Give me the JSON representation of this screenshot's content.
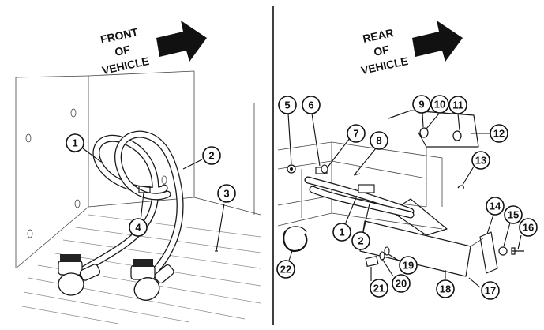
{
  "left_panel": {
    "direction_label": [
      "FRONT",
      "OF",
      "VEHICLE"
    ]
  },
  "right_panel": {
    "direction_label": [
      "REAR",
      "OF",
      "VEHICLE"
    ]
  },
  "callouts": [
    {
      "panel": "left",
      "number": "1",
      "part": "hose"
    },
    {
      "panel": "left",
      "number": "2",
      "part": "hose"
    },
    {
      "panel": "left",
      "number": "3",
      "part": "floor"
    },
    {
      "panel": "left",
      "number": "4",
      "part": "clip"
    },
    {
      "panel": "right",
      "number": "5"
    },
    {
      "panel": "right",
      "number": "6"
    },
    {
      "panel": "right",
      "number": "7"
    },
    {
      "panel": "right",
      "number": "8"
    },
    {
      "panel": "right",
      "number": "9"
    },
    {
      "panel": "right",
      "number": "10"
    },
    {
      "panel": "right",
      "number": "11"
    },
    {
      "panel": "right",
      "number": "12"
    },
    {
      "panel": "right",
      "number": "13"
    },
    {
      "panel": "right",
      "number": "14"
    },
    {
      "panel": "right",
      "number": "15"
    },
    {
      "panel": "right",
      "number": "16"
    },
    {
      "panel": "right",
      "number": "17"
    },
    {
      "panel": "right",
      "number": "18"
    },
    {
      "panel": "right",
      "number": "19"
    },
    {
      "panel": "right",
      "number": "20"
    },
    {
      "panel": "right",
      "number": "21"
    },
    {
      "panel": "right",
      "number": "22"
    },
    {
      "panel": "right",
      "number": "1"
    },
    {
      "panel": "right",
      "number": "2"
    }
  ]
}
